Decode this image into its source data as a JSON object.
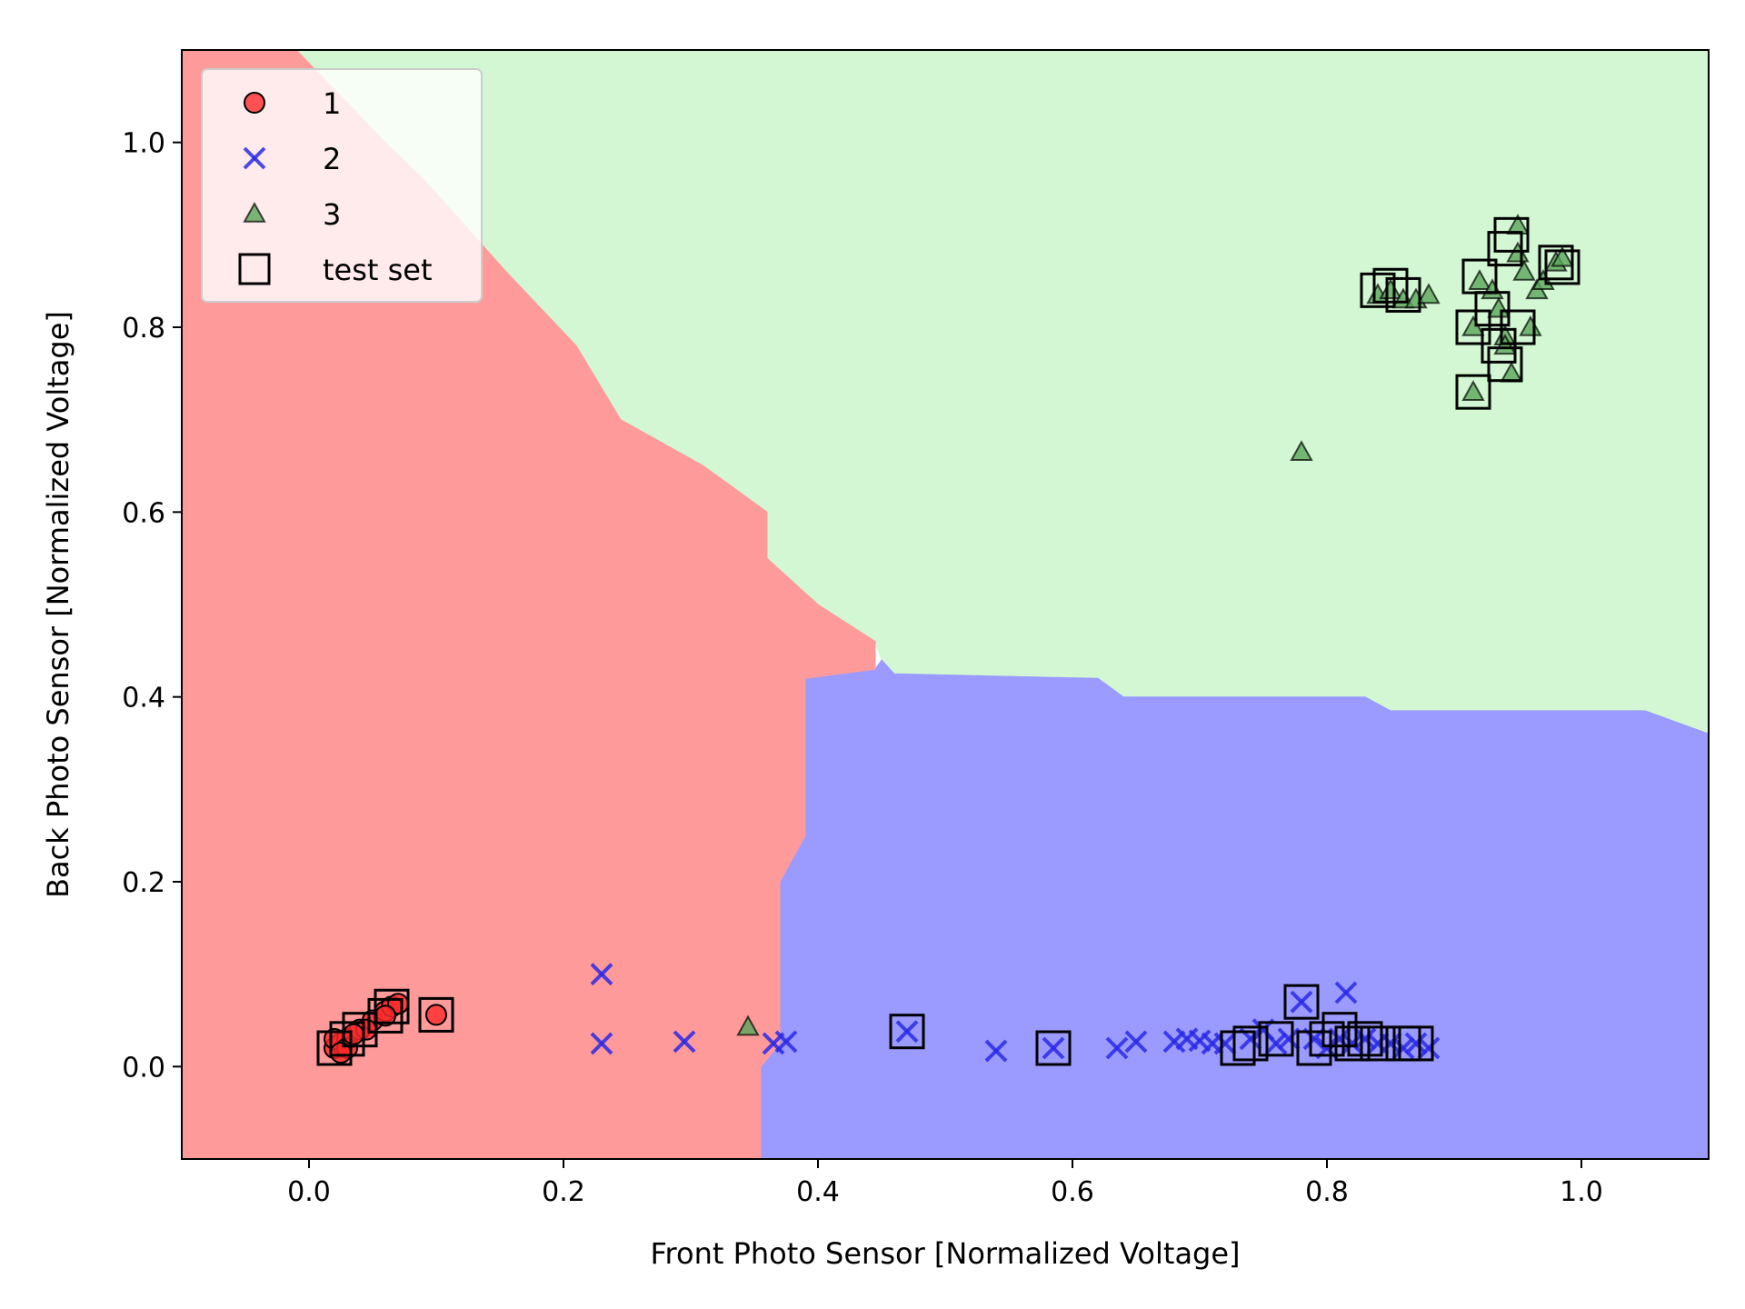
{
  "chart_data": {
    "type": "scatter",
    "xlabel": "Front Photo Sensor [Normalized Voltage]",
    "ylabel": "Back Photo Sensor [Normalized Voltage]",
    "xlim": [
      -0.1,
      1.1
    ],
    "ylim": [
      -0.1,
      1.1
    ],
    "xticks": [
      "0.0",
      "0.2",
      "0.4",
      "0.6",
      "0.8",
      "1.0"
    ],
    "yticks": [
      "0.0",
      "0.2",
      "0.4",
      "0.6",
      "0.8",
      "1.0"
    ],
    "grid": false,
    "legend_position": "top-left",
    "decision_regions": [
      {
        "class": "1",
        "color": "#ff9a9a",
        "polygon": [
          [
            -0.1,
            -0.1
          ],
          [
            0.355,
            -0.1
          ],
          [
            0.355,
            0.0
          ],
          [
            0.37,
            0.025
          ],
          [
            0.37,
            0.2
          ],
          [
            0.39,
            0.25
          ],
          [
            0.39,
            0.42
          ],
          [
            0.445,
            0.43
          ],
          [
            0.445,
            0.46
          ],
          [
            0.4,
            0.5
          ],
          [
            0.36,
            0.55
          ],
          [
            0.36,
            0.6
          ],
          [
            0.31,
            0.65
          ],
          [
            0.245,
            0.7
          ],
          [
            0.21,
            0.78
          ],
          [
            0.155,
            0.86
          ],
          [
            0.09,
            0.96
          ],
          [
            0.06,
            1.0
          ],
          [
            -0.01,
            1.1
          ],
          [
            -0.1,
            1.1
          ]
        ]
      },
      {
        "class": "2",
        "color": "#9a9aff",
        "polygon": [
          [
            0.355,
            -0.1
          ],
          [
            1.1,
            -0.1
          ],
          [
            1.1,
            0.36
          ],
          [
            1.05,
            0.385
          ],
          [
            0.85,
            0.385
          ],
          [
            0.83,
            0.4
          ],
          [
            0.64,
            0.4
          ],
          [
            0.62,
            0.42
          ],
          [
            0.46,
            0.425
          ],
          [
            0.45,
            0.44
          ],
          [
            0.445,
            0.43
          ],
          [
            0.39,
            0.42
          ],
          [
            0.39,
            0.25
          ],
          [
            0.37,
            0.2
          ],
          [
            0.37,
            0.025
          ],
          [
            0.355,
            0.0
          ]
        ]
      },
      {
        "class": "3",
        "color": "#d2f7d2",
        "polygon": [
          [
            -0.01,
            1.1
          ],
          [
            1.1,
            1.1
          ],
          [
            1.1,
            0.36
          ],
          [
            1.05,
            0.385
          ],
          [
            0.85,
            0.385
          ],
          [
            0.83,
            0.4
          ],
          [
            0.64,
            0.4
          ],
          [
            0.62,
            0.42
          ],
          [
            0.46,
            0.425
          ],
          [
            0.45,
            0.44
          ],
          [
            0.445,
            0.46
          ],
          [
            0.4,
            0.5
          ],
          [
            0.36,
            0.55
          ],
          [
            0.36,
            0.6
          ],
          [
            0.31,
            0.65
          ],
          [
            0.245,
            0.7
          ],
          [
            0.21,
            0.78
          ],
          [
            0.155,
            0.86
          ],
          [
            0.09,
            0.96
          ],
          [
            0.06,
            1.0
          ]
        ]
      }
    ],
    "series": [
      {
        "name": "1",
        "marker": "circle",
        "color": "#ff2a2a",
        "points": [
          [
            0.02,
            0.02
          ],
          [
            0.025,
            0.025
          ],
          [
            0.03,
            0.03
          ],
          [
            0.02,
            0.03
          ],
          [
            0.03,
            0.02
          ],
          [
            0.04,
            0.04
          ],
          [
            0.05,
            0.05
          ],
          [
            0.06,
            0.06
          ],
          [
            0.065,
            0.065
          ],
          [
            0.07,
            0.068
          ],
          [
            0.06,
            0.055
          ],
          [
            0.1,
            0.056
          ],
          [
            0.045,
            0.04
          ],
          [
            0.035,
            0.035
          ],
          [
            0.025,
            0.015
          ]
        ]
      },
      {
        "name": "2",
        "marker": "x",
        "color": "#2a2ae6",
        "points": [
          [
            0.23,
            0.1
          ],
          [
            0.23,
            0.025
          ],
          [
            0.295,
            0.027
          ],
          [
            0.365,
            0.025
          ],
          [
            0.375,
            0.027
          ],
          [
            0.47,
            0.038
          ],
          [
            0.54,
            0.017
          ],
          [
            0.585,
            0.02
          ],
          [
            0.635,
            0.02
          ],
          [
            0.65,
            0.027
          ],
          [
            0.68,
            0.027
          ],
          [
            0.69,
            0.03
          ],
          [
            0.7,
            0.028
          ],
          [
            0.71,
            0.025
          ],
          [
            0.72,
            0.025
          ],
          [
            0.74,
            0.03
          ],
          [
            0.75,
            0.04
          ],
          [
            0.76,
            0.025
          ],
          [
            0.77,
            0.03
          ],
          [
            0.78,
            0.07
          ],
          [
            0.79,
            0.03
          ],
          [
            0.8,
            0.02
          ],
          [
            0.81,
            0.03
          ],
          [
            0.815,
            0.08
          ],
          [
            0.82,
            0.025
          ],
          [
            0.83,
            0.03
          ],
          [
            0.84,
            0.025
          ],
          [
            0.85,
            0.025
          ],
          [
            0.86,
            0.02
          ],
          [
            0.87,
            0.025
          ],
          [
            0.88,
            0.02
          ]
        ]
      },
      {
        "name": "3",
        "marker": "triangle",
        "color": "#5aa55a",
        "points": [
          [
            0.345,
            0.043
          ],
          [
            0.78,
            0.665
          ],
          [
            0.84,
            0.835
          ],
          [
            0.85,
            0.84
          ],
          [
            0.86,
            0.83
          ],
          [
            0.87,
            0.83
          ],
          [
            0.88,
            0.835
          ],
          [
            0.915,
            0.73
          ],
          [
            0.915,
            0.8
          ],
          [
            0.92,
            0.85
          ],
          [
            0.93,
            0.84
          ],
          [
            0.935,
            0.82
          ],
          [
            0.94,
            0.79
          ],
          [
            0.94,
            0.78
          ],
          [
            0.945,
            0.75
          ],
          [
            0.95,
            0.91
          ],
          [
            0.95,
            0.88
          ],
          [
            0.955,
            0.86
          ],
          [
            0.96,
            0.8
          ],
          [
            0.965,
            0.84
          ],
          [
            0.97,
            0.85
          ],
          [
            0.98,
            0.87
          ],
          [
            0.985,
            0.875
          ]
        ]
      }
    ],
    "test_set": {
      "name": "test set",
      "marker": "square",
      "points": [
        [
          0.02,
          0.02
        ],
        [
          0.03,
          0.03
        ],
        [
          0.04,
          0.04
        ],
        [
          0.06,
          0.055
        ],
        [
          0.065,
          0.065
        ],
        [
          0.1,
          0.056
        ],
        [
          0.47,
          0.038
        ],
        [
          0.585,
          0.02
        ],
        [
          0.73,
          0.02
        ],
        [
          0.74,
          0.025
        ],
        [
          0.76,
          0.03
        ],
        [
          0.78,
          0.07
        ],
        [
          0.79,
          0.02
        ],
        [
          0.8,
          0.03
        ],
        [
          0.81,
          0.04
        ],
        [
          0.82,
          0.025
        ],
        [
          0.83,
          0.03
        ],
        [
          0.84,
          0.025
        ],
        [
          0.86,
          0.025
        ],
        [
          0.87,
          0.025
        ],
        [
          0.84,
          0.84
        ],
        [
          0.85,
          0.845
        ],
        [
          0.86,
          0.835
        ],
        [
          0.915,
          0.73
        ],
        [
          0.915,
          0.8
        ],
        [
          0.92,
          0.855
        ],
        [
          0.93,
          0.82
        ],
        [
          0.935,
          0.78
        ],
        [
          0.94,
          0.76
        ],
        [
          0.94,
          0.885
        ],
        [
          0.945,
          0.9
        ],
        [
          0.95,
          0.8
        ],
        [
          0.98,
          0.87
        ],
        [
          0.985,
          0.865
        ]
      ]
    },
    "legend": [
      {
        "label": "1",
        "marker": "circle"
      },
      {
        "label": "2",
        "marker": "x"
      },
      {
        "label": "3",
        "marker": "triangle"
      },
      {
        "label": "test set",
        "marker": "square"
      }
    ],
    "colors": {
      "class1": "#ff2a2a",
      "class2": "#2a2ae6",
      "class3": "#5aa55a"
    }
  }
}
